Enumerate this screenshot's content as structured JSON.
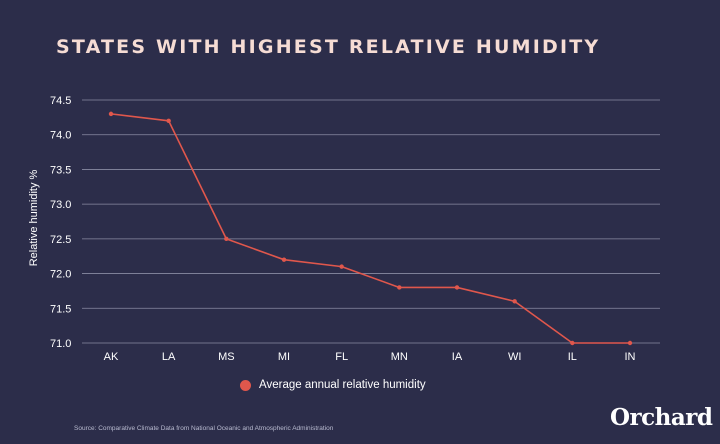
{
  "title": "STATES WITH HIGHEST RELATIVE HUMIDITY",
  "source": "Source: Comparative Climate Data from National Oceanic and Atmospheric Administration",
  "brand": "Orchard",
  "colors": {
    "background": "#2c2d4a",
    "line": "#e0574c",
    "grid": "#8a8ca3",
    "title": "#f6dcd4"
  },
  "chart_data": {
    "type": "line",
    "title": "STATES WITH HIGHEST RELATIVE HUMIDITY",
    "xlabel": "",
    "ylabel": "Relative humidity %",
    "categories": [
      "AK",
      "LA",
      "MS",
      "MI",
      "FL",
      "MN",
      "IA",
      "WI",
      "IL",
      "IN"
    ],
    "yticks": [
      "71.0",
      "71.5",
      "72.0",
      "72.5",
      "73.0",
      "73.5",
      "74.0",
      "74.5"
    ],
    "ylim": [
      71.0,
      74.5
    ],
    "grid": true,
    "legend_position": "bottom-center",
    "series": [
      {
        "name": "Average annual relative humidity",
        "values": [
          74.3,
          74.2,
          72.5,
          72.2,
          72.1,
          71.8,
          71.8,
          71.6,
          71.0,
          71.0
        ]
      }
    ]
  }
}
